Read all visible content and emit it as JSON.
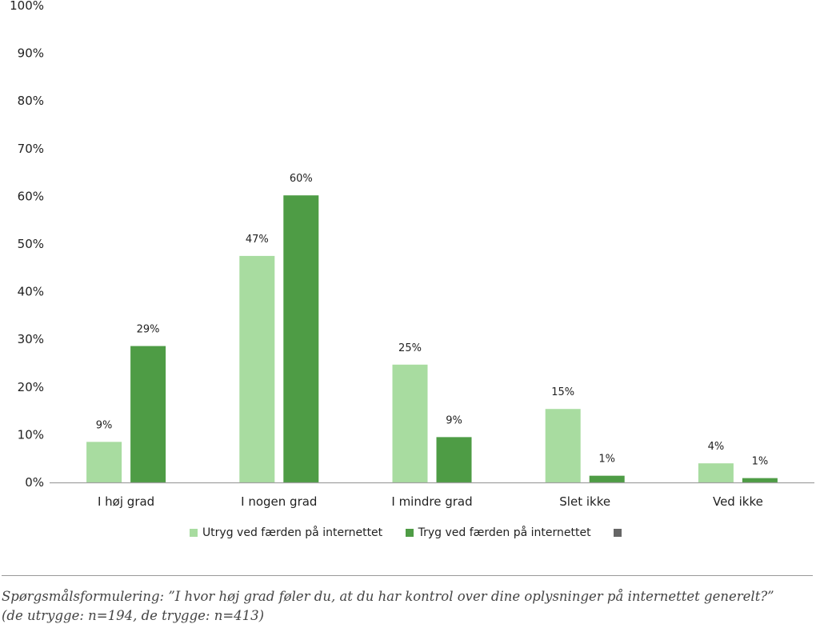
{
  "chart_data": {
    "type": "bar",
    "categories": [
      "I høj grad",
      "I nogen grad",
      "I mindre grad",
      "Slet ikke",
      "Ved ikke"
    ],
    "series": [
      {
        "name": "Utryg ved færden på internettet",
        "values": [
          9,
          47,
          25,
          15,
          4
        ],
        "plot_values": [
          8.5,
          47.5,
          24.7,
          15.4,
          4.0
        ],
        "color": "#a8dca0"
      },
      {
        "name": "Tryg ved færden på internettet",
        "values": [
          29,
          60,
          9,
          1,
          1
        ],
        "plot_values": [
          28.6,
          60.2,
          9.5,
          1.4,
          0.9
        ],
        "color": "#4e9c45"
      }
    ],
    "extra_legend_swatch_color": "#666666",
    "y_ticks": [
      "0%",
      "10%",
      "20%",
      "30%",
      "40%",
      "50%",
      "60%",
      "70%",
      "80%",
      "90%",
      "100%"
    ],
    "ylim": [
      0,
      100
    ],
    "grid": false,
    "legend_placement": "bottom"
  },
  "footnote": {
    "line1": "Spørgsmålsformulering: ”I hvor høj grad føler du, at du har kontrol over dine oplysninger på internettet generelt?”",
    "line2": "(de utrygge: n=194, de trygge: n=413)"
  }
}
